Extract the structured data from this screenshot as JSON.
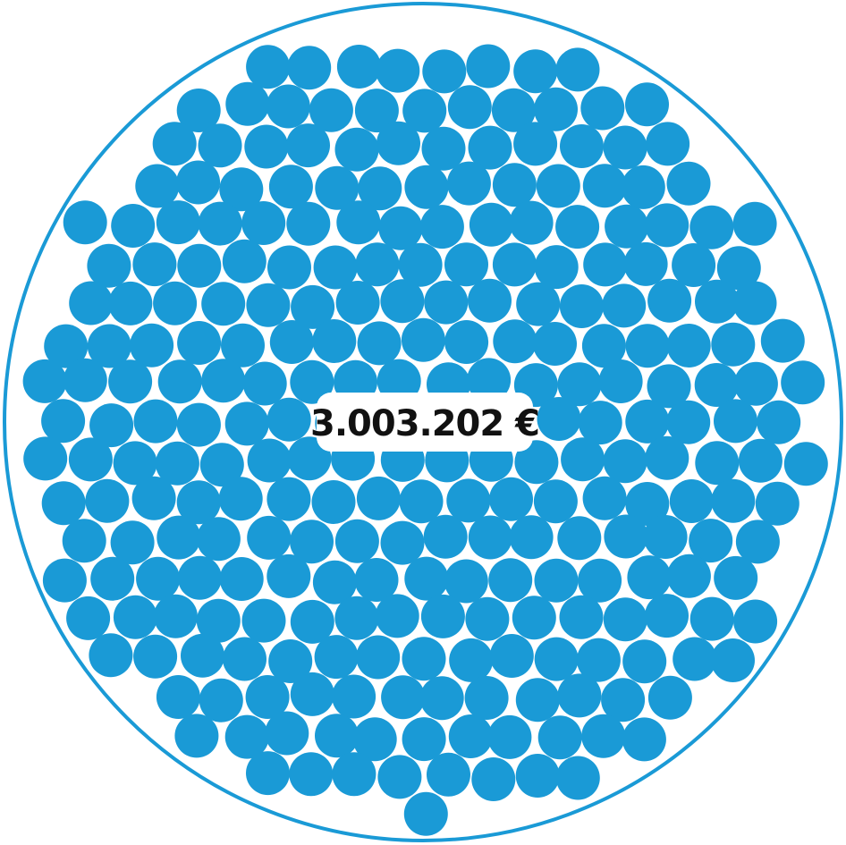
{
  "label": "3.003.202 €"
}
